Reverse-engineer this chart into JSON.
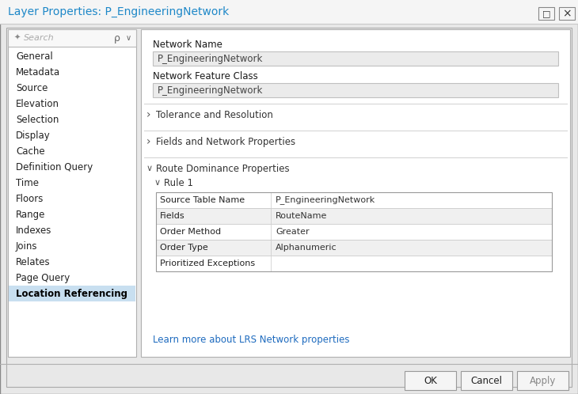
{
  "title": "Layer Properties: P_EngineeringNetwork",
  "title_color": "#1e88c8",
  "bg_color": "#e8e8e8",
  "white": "#ffffff",
  "sidebar_bg": "#ffffff",
  "selected_item_bg": "#c8dff0",
  "sidebar_items": [
    "General",
    "Metadata",
    "Source",
    "Elevation",
    "Selection",
    "Display",
    "Cache",
    "Definition Query",
    "Time",
    "Floors",
    "Range",
    "Indexes",
    "Joins",
    "Relates",
    "Page Query",
    "Location Referencing"
  ],
  "selected_sidebar": "Location Referencing",
  "network_name_label": "Network Name",
  "network_name_value": "P_EngineeringNetwork",
  "network_feature_class_label": "Network Feature Class",
  "network_feature_class_value": "P_EngineeringNetwork",
  "section1": "Tolerance and Resolution",
  "section2": "Fields and Network Properties",
  "section3": "Route Dominance Properties",
  "rule_label": "Rule 1",
  "table_rows": [
    [
      "Source Table Name",
      "P_EngineeringNetwork"
    ],
    [
      "Fields",
      "RouteName"
    ],
    [
      "Order Method",
      "Greater"
    ],
    [
      "Order Type",
      "Alphanumeric"
    ],
    [
      "Prioritized Exceptions",
      ""
    ]
  ],
  "link_text": "Learn more about LRS Network properties",
  "link_color": "#1e6bbf",
  "btn_ok": "OK",
  "btn_cancel": "Cancel",
  "btn_apply": "Apply",
  "search_placeholder": "Search",
  "input_bg": "#ebebeb",
  "table_row_alt_bg": "#f0f0f0",
  "border_dark": "#aaaaaa",
  "border_light": "#d0d0d0",
  "section_color": "#333333",
  "text_color": "#222222",
  "titlebar_border": "#c8c8c8"
}
